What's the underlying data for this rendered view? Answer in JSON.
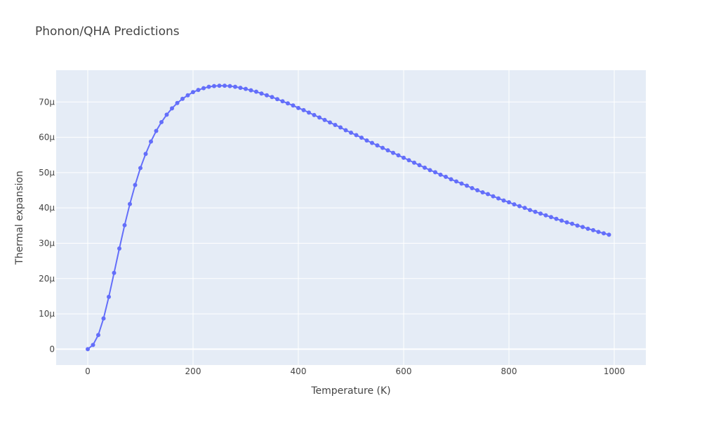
{
  "chart_data": {
    "type": "line",
    "title": "Phonon/QHA Predictions",
    "xlabel": "Temperature (K)",
    "ylabel": "Thermal expansion",
    "xlim": [
      -60,
      1060
    ],
    "ylim": [
      -4.5e-06,
      7.9e-05
    ],
    "x_ticks": [
      0,
      200,
      400,
      600,
      800,
      1000
    ],
    "x_tick_labels": [
      "0",
      "200",
      "400",
      "600",
      "800",
      "1000"
    ],
    "y_ticks": [
      0,
      1e-05,
      2e-05,
      3e-05,
      4e-05,
      5e-05,
      6e-05,
      7e-05
    ],
    "y_tick_labels": [
      "0",
      "10μ",
      "20μ",
      "30μ",
      "40μ",
      "50μ",
      "60μ",
      "70μ"
    ],
    "grid": true,
    "legend": "none",
    "colors": {
      "series": "#636efa",
      "plot_bg": "#e5ecf6",
      "grid": "#ffffff",
      "text": "#444444"
    },
    "series": [
      {
        "mode": "lines+markers",
        "x": [
          0,
          10,
          20,
          30,
          40,
          50,
          60,
          70,
          80,
          90,
          100,
          110,
          120,
          130,
          140,
          150,
          160,
          170,
          180,
          190,
          200,
          210,
          220,
          230,
          240,
          250,
          260,
          270,
          280,
          290,
          300,
          310,
          320,
          330,
          340,
          350,
          360,
          370,
          380,
          390,
          400,
          410,
          420,
          430,
          440,
          450,
          460,
          470,
          480,
          490,
          500,
          510,
          520,
          530,
          540,
          550,
          560,
          570,
          580,
          590,
          600,
          610,
          620,
          630,
          640,
          650,
          660,
          670,
          680,
          690,
          700,
          710,
          720,
          730,
          740,
          750,
          760,
          770,
          780,
          790,
          800,
          810,
          820,
          830,
          840,
          850,
          860,
          870,
          880,
          890,
          900,
          910,
          920,
          930,
          940,
          950,
          960,
          970,
          980,
          990
        ],
        "y": [
          0,
          1.2e-06,
          4e-06,
          8.7e-06,
          1.48e-05,
          2.16e-05,
          2.85e-05,
          3.51e-05,
          4.11e-05,
          4.65e-05,
          5.13e-05,
          5.53e-05,
          5.88e-05,
          6.18e-05,
          6.43e-05,
          6.64e-05,
          6.82e-05,
          6.97e-05,
          7.09e-05,
          7.19e-05,
          7.28e-05,
          7.34e-05,
          7.39e-05,
          7.43e-05,
          7.45e-05,
          7.46e-05,
          7.46e-05,
          7.45e-05,
          7.43e-05,
          7.4e-05,
          7.37e-05,
          7.33e-05,
          7.29e-05,
          7.24e-05,
          7.19e-05,
          7.14e-05,
          7.08e-05,
          7.02e-05,
          6.96e-05,
          6.9e-05,
          6.83e-05,
          6.77e-05,
          6.7e-05,
          6.63e-05,
          6.56e-05,
          6.49e-05,
          6.42e-05,
          6.35e-05,
          6.28e-05,
          6.2e-05,
          6.13e-05,
          6.06e-05,
          5.99e-05,
          5.91e-05,
          5.84e-05,
          5.77e-05,
          5.7e-05,
          5.63e-05,
          5.56e-05,
          5.49e-05,
          5.42e-05,
          5.35e-05,
          5.28e-05,
          5.21e-05,
          5.14e-05,
          5.07e-05,
          5.01e-05,
          4.94e-05,
          4.88e-05,
          4.81e-05,
          4.75e-05,
          4.69e-05,
          4.63e-05,
          4.56e-05,
          4.5e-05,
          4.44e-05,
          4.39e-05,
          4.33e-05,
          4.27e-05,
          4.21e-05,
          4.16e-05,
          4.1e-05,
          4.05e-05,
          4e-05,
          3.94e-05,
          3.89e-05,
          3.84e-05,
          3.79e-05,
          3.74e-05,
          3.69e-05,
          3.64e-05,
          3.59e-05,
          3.55e-05,
          3.5e-05,
          3.46e-05,
          3.41e-05,
          3.37e-05,
          3.32e-05,
          3.28e-05,
          3.24e-05
        ]
      }
    ]
  }
}
